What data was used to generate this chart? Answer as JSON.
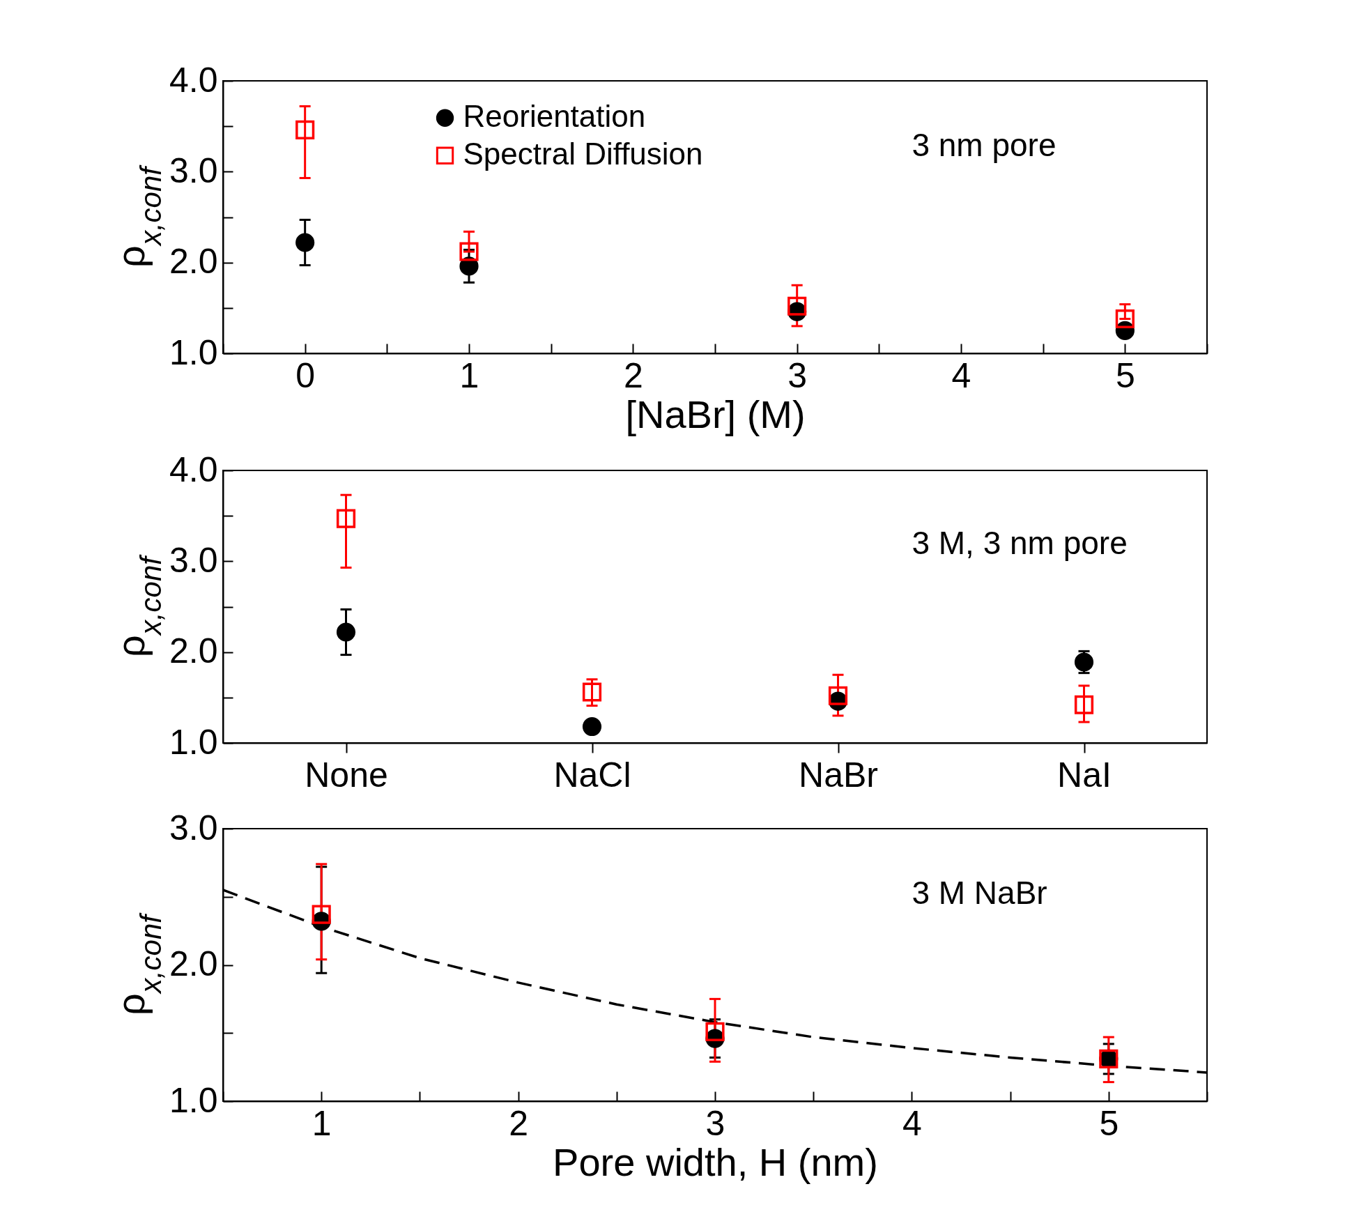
{
  "chart_data": [
    {
      "type": "scatter",
      "xlabel": "[NaBr] (M)",
      "ylabel": "ρ$_{x,conf}$",
      "annotations": [
        "3 nm pore"
      ],
      "x": [
        0,
        1,
        3,
        5
      ],
      "xlim": [
        -0.5,
        5.5
      ],
      "xticks": [
        {
          "value": -0.5,
          "label": null
        },
        0,
        {
          "value": 0.5,
          "label": null
        },
        1,
        {
          "value": 1.5,
          "label": null
        },
        2,
        {
          "value": 2.5,
          "label": null
        },
        3,
        {
          "value": 3.5,
          "label": null
        },
        4,
        {
          "value": 4.5,
          "label": null
        },
        5,
        {
          "value": 5.5,
          "label": null
        }
      ],
      "ylim": [
        1,
        4
      ],
      "yticks": [
        {
          "value": 1,
          "label": "1.0"
        },
        {
          "value": 1.5,
          "label": null
        },
        {
          "value": 2,
          "label": "2.0"
        },
        {
          "value": 2.5,
          "label": null
        },
        {
          "value": 3,
          "label": "3.0"
        },
        {
          "value": 3.5,
          "label": null
        },
        {
          "value": 4,
          "label": "4.0"
        }
      ],
      "grid": false,
      "legend": "top left",
      "series": [
        {
          "name": "Reorientation",
          "color": "#000000",
          "marker": "circle",
          "values": [
            2.22,
            1.96,
            1.46,
            1.25
          ],
          "errors": [
            [
              1.97,
              2.47
            ],
            [
              1.78,
              2.14
            ],
            null,
            null
          ]
        },
        {
          "name": "Spectral Diffusion",
          "color": "#ff0000",
          "marker": "square",
          "values": [
            3.46,
            2.12,
            1.52,
            1.38
          ],
          "errors": [
            [
              2.93,
              3.72
            ],
            [
              2.12,
              2.34
            ],
            [
              1.3,
              1.75
            ],
            [
              1.38,
              1.54
            ]
          ]
        }
      ]
    },
    {
      "type": "scatter",
      "ylabel": "ρ$_{x,conf}$",
      "annotations": [
        "3 M, 3 nm pore"
      ],
      "categories": [
        "None",
        "NaCl",
        "NaBr",
        "NaI"
      ],
      "ylim": [
        1,
        4
      ],
      "yticks": [
        {
          "value": 1,
          "label": "1.0"
        },
        {
          "value": 1.5,
          "label": null
        },
        {
          "value": 2,
          "label": "2.0"
        },
        {
          "value": 2.5,
          "label": null
        },
        {
          "value": 3,
          "label": "3.0"
        },
        {
          "value": 3.5,
          "label": null
        },
        {
          "value": 4,
          "label": "4.0"
        }
      ],
      "grid": false,
      "series": [
        {
          "color": "#000000",
          "marker": "circle",
          "values": [
            2.22,
            1.18,
            1.46,
            1.89
          ],
          "errors": [
            [
              1.97,
              2.47
            ],
            null,
            null,
            [
              1.77,
              2.01
            ]
          ]
        },
        {
          "color": "#ff0000",
          "marker": "square",
          "values": [
            3.47,
            1.56,
            1.52,
            1.42
          ],
          "errors": [
            [
              2.93,
              3.73
            ],
            [
              1.41,
              1.7
            ],
            [
              1.3,
              1.75
            ],
            [
              1.23,
              1.63
            ]
          ]
        }
      ]
    },
    {
      "type": "scatter",
      "xlabel": "Pore width, H (nm)",
      "ylabel": "ρ$_{x,conf}$",
      "annotations": [
        "3 M NaBr"
      ],
      "x": [
        1,
        3,
        5
      ],
      "xlim": [
        0.5,
        5.5
      ],
      "xticks": [
        {
          "value": 0.5,
          "label": null
        },
        1,
        {
          "value": 1.5,
          "label": null
        },
        2,
        {
          "value": 2.5,
          "label": null
        },
        3,
        {
          "value": 3.5,
          "label": null
        },
        4,
        {
          "value": 4.5,
          "label": null
        },
        5,
        {
          "value": 5.5,
          "label": null
        }
      ],
      "ylim": [
        1,
        3
      ],
      "yticks": [
        {
          "value": 1,
          "label": "1.0"
        },
        {
          "value": 1.5,
          "label": null
        },
        {
          "value": 2,
          "label": "2.0"
        },
        {
          "value": 2.5,
          "label": null
        },
        {
          "value": 3,
          "label": "3.0"
        }
      ],
      "grid": false,
      "series": [
        {
          "type": "line",
          "color": "#000000",
          "line_style": "dashed",
          "marker": "none",
          "x": [
            0.5,
            1,
            1.5,
            2,
            2.5,
            3,
            3.5,
            4,
            4.5,
            5,
            5.5
          ],
          "values": [
            2.55,
            2.28,
            2.05,
            1.87,
            1.71,
            1.58,
            1.47,
            1.39,
            1.32,
            1.26,
            1.21
          ]
        },
        {
          "color": "#000000",
          "marker": "circle",
          "values": [
            2.32,
            1.46,
            1.31
          ],
          "errors": [
            [
              1.94,
              2.72
            ],
            [
              1.32,
              1.6
            ],
            [
              1.2,
              1.42
            ]
          ]
        },
        {
          "color": "#ff0000",
          "marker": "square",
          "values": [
            2.37,
            1.51,
            1.31
          ],
          "errors": [
            [
              2.04,
              2.74
            ],
            [
              1.29,
              1.75
            ],
            [
              1.14,
              1.47
            ]
          ]
        }
      ]
    }
  ]
}
